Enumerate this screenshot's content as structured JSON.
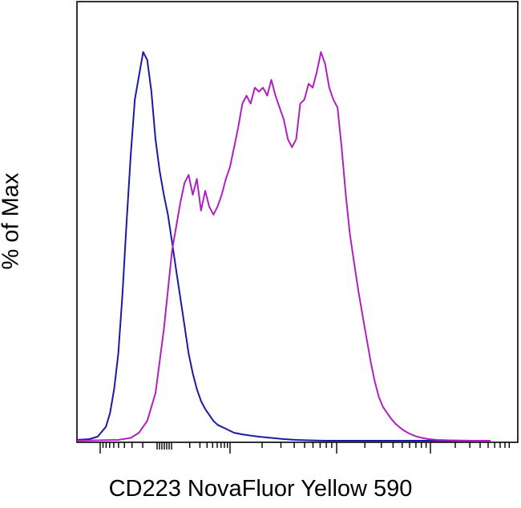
{
  "chart_data": {
    "type": "line",
    "title": "",
    "xlabel": "CD223 NovaFluor Yellow 590",
    "ylabel": "% of Max",
    "x_scale": "log",
    "x_ticks_labeled": false,
    "y_ticks_labeled": false,
    "grid": false,
    "xlim": [
      0,
      100
    ],
    "ylim": [
      0,
      100
    ],
    "series": [
      {
        "color": "#1a1aa6",
        "x": [
          0,
          3,
          5,
          7,
          8,
          9,
          10,
          11,
          12,
          13,
          14,
          15,
          16,
          17,
          18,
          19,
          20,
          21,
          22,
          23,
          24,
          25,
          26,
          27,
          28,
          29,
          30,
          31,
          32,
          33,
          34,
          35,
          36,
          37,
          38,
          40,
          42,
          44,
          46,
          48,
          50,
          53,
          56,
          60,
          65,
          70,
          75,
          80,
          85,
          90,
          95,
          100
        ],
        "values": [
          0.2,
          0.4,
          1,
          3.5,
          7,
          13,
          22,
          37,
          55,
          72,
          86,
          92,
          98,
          96,
          88,
          76,
          68,
          62,
          57,
          50,
          43,
          36,
          29,
          22,
          17,
          13,
          10,
          8,
          6.5,
          5,
          4,
          3.5,
          3,
          2.5,
          2,
          1.6,
          1.3,
          1,
          0.8,
          0.6,
          0.4,
          0.2,
          0.1,
          0,
          0,
          0,
          0,
          0,
          0,
          0,
          0,
          0
        ]
      },
      {
        "color": "#b020c0",
        "x": [
          0,
          10,
          13,
          15,
          17,
          19,
          21,
          23,
          25,
          26,
          27,
          28,
          29,
          30,
          31,
          32,
          33,
          34,
          35,
          36,
          37,
          38,
          39,
          40,
          41,
          42,
          43,
          44,
          45,
          46,
          47,
          48,
          49,
          50,
          51,
          52,
          53,
          54,
          55,
          56,
          57,
          58,
          59,
          60,
          61,
          62,
          63,
          64,
          65,
          66,
          67,
          68,
          69,
          70,
          71,
          72,
          73,
          74,
          75,
          76,
          77,
          78,
          79,
          80,
          81,
          82,
          83,
          85,
          87,
          90,
          93,
          96,
          100
        ],
        "values": [
          0,
          0.2,
          0.7,
          2,
          5,
          12,
          28,
          48,
          60,
          65,
          67,
          62,
          66,
          58,
          63,
          59,
          57,
          59,
          62,
          66,
          69,
          74,
          79,
          85,
          87,
          85,
          89,
          88,
          89,
          87,
          91,
          87,
          84,
          81,
          76,
          74,
          76,
          85,
          86,
          90,
          89,
          93,
          98,
          95,
          89,
          86,
          84,
          74,
          62,
          52,
          45,
          38,
          32,
          26,
          20,
          15,
          11,
          8.5,
          7,
          5.5,
          4.3,
          3.4,
          2.6,
          2,
          1.5,
          1.1,
          0.8,
          0.4,
          0.2,
          0.1,
          0.05,
          0,
          0
        ]
      }
    ]
  }
}
